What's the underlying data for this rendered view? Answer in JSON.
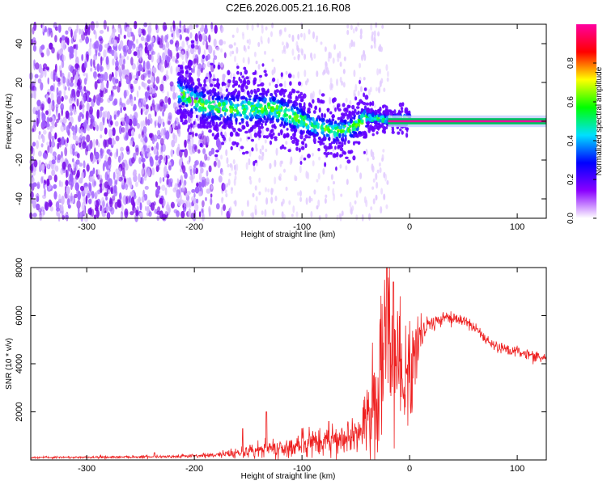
{
  "page_title": "C2E6.2026.005.21.16.R08",
  "chart_data": [
    {
      "type": "heatmap",
      "title": "C2E6.2026.005.21.16.R08",
      "xlabel": "Height of straight line (km)",
      "ylabel": "Frequency (Hz)",
      "xlim": [
        -352,
        127
      ],
      "ylim": [
        -50,
        50
      ],
      "x_ticks": [
        -300,
        -200,
        -100,
        0,
        100
      ],
      "y_ticks": [
        -40,
        -20,
        0,
        20,
        40
      ],
      "colorbar": {
        "label": "Normalized spectral amplitude",
        "range": [
          0,
          1
        ],
        "ticks": [
          0.0,
          0.2,
          0.4,
          0.6,
          0.8
        ],
        "tick_labels": [
          "0.0",
          "0.2",
          "0.4",
          "0.6",
          "0.8"
        ],
        "colors": [
          "#ffffff",
          "#8a00ff",
          "#0000ff",
          "#00e0ff",
          "#00ff00",
          "#ffff00",
          "#ff0000",
          "#ff00a0"
        ]
      },
      "carrier": {
        "x_start": -20,
        "x_end": 127,
        "y": 0,
        "amplitude": 1.0
      },
      "signal_track": [
        {
          "x": -215,
          "y": 15
        },
        {
          "x": -190,
          "y": 8
        },
        {
          "x": -160,
          "y": 6
        },
        {
          "x": -130,
          "y": 7
        },
        {
          "x": -110,
          "y": 3
        },
        {
          "x": -90,
          "y": -2
        },
        {
          "x": -70,
          "y": -5
        },
        {
          "x": -55,
          "y": -4
        },
        {
          "x": -40,
          "y": 2
        },
        {
          "x": -20,
          "y": 1
        },
        {
          "x": 0,
          "y": 1
        }
      ],
      "noise_region": {
        "x_start": -352,
        "x_end": -170,
        "amplitude": 0.15
      }
    },
    {
      "type": "line",
      "xlabel": "Height of straight line (km)",
      "ylabel": "SNR (10 * v/v)",
      "xlim": [
        -352,
        127
      ],
      "ylim": [
        0,
        8000
      ],
      "x_ticks": [
        -300,
        -200,
        -100,
        0,
        100
      ],
      "y_ticks": [
        2000,
        4000,
        6000,
        8000
      ],
      "color": "#ee2020",
      "series": [
        {
          "x": [
            -352,
            -300,
            -250,
            -200,
            -170,
            -150,
            -130,
            -110,
            -90,
            -70,
            -50,
            -40,
            -30,
            -25,
            -20,
            -15,
            -10,
            -5,
            0,
            10,
            20,
            30,
            40,
            50,
            60,
            70,
            80,
            90,
            100,
            110,
            120,
            127
          ],
          "values": [
            100,
            110,
            130,
            160,
            250,
            350,
            450,
            550,
            700,
            850,
            1100,
            1500,
            2500,
            4000,
            5500,
            4500,
            3500,
            3000,
            3500,
            5200,
            5700,
            5900,
            5900,
            5800,
            5500,
            5000,
            4700,
            4600,
            4500,
            4400,
            4300,
            4200
          ],
          "noise": [
            20,
            25,
            30,
            40,
            80,
            150,
            200,
            250,
            300,
            350,
            500,
            700,
            1500,
            2000,
            2000,
            2000,
            1600,
            1400,
            1200,
            500,
            200,
            120,
            120,
            120,
            120,
            120,
            120,
            120,
            110,
            110,
            110,
            110
          ],
          "spikes": [
            {
              "x": -237,
              "y": 300
            },
            {
              "x": -155,
              "y": 1300
            },
            {
              "x": -133,
              "y": 2000
            },
            {
              "x": -100,
              "y": 1300
            },
            {
              "x": -75,
              "y": 1600
            },
            {
              "x": -21,
              "y": 8000
            },
            {
              "x": -15,
              "y": 7400
            }
          ]
        }
      ]
    }
  ]
}
